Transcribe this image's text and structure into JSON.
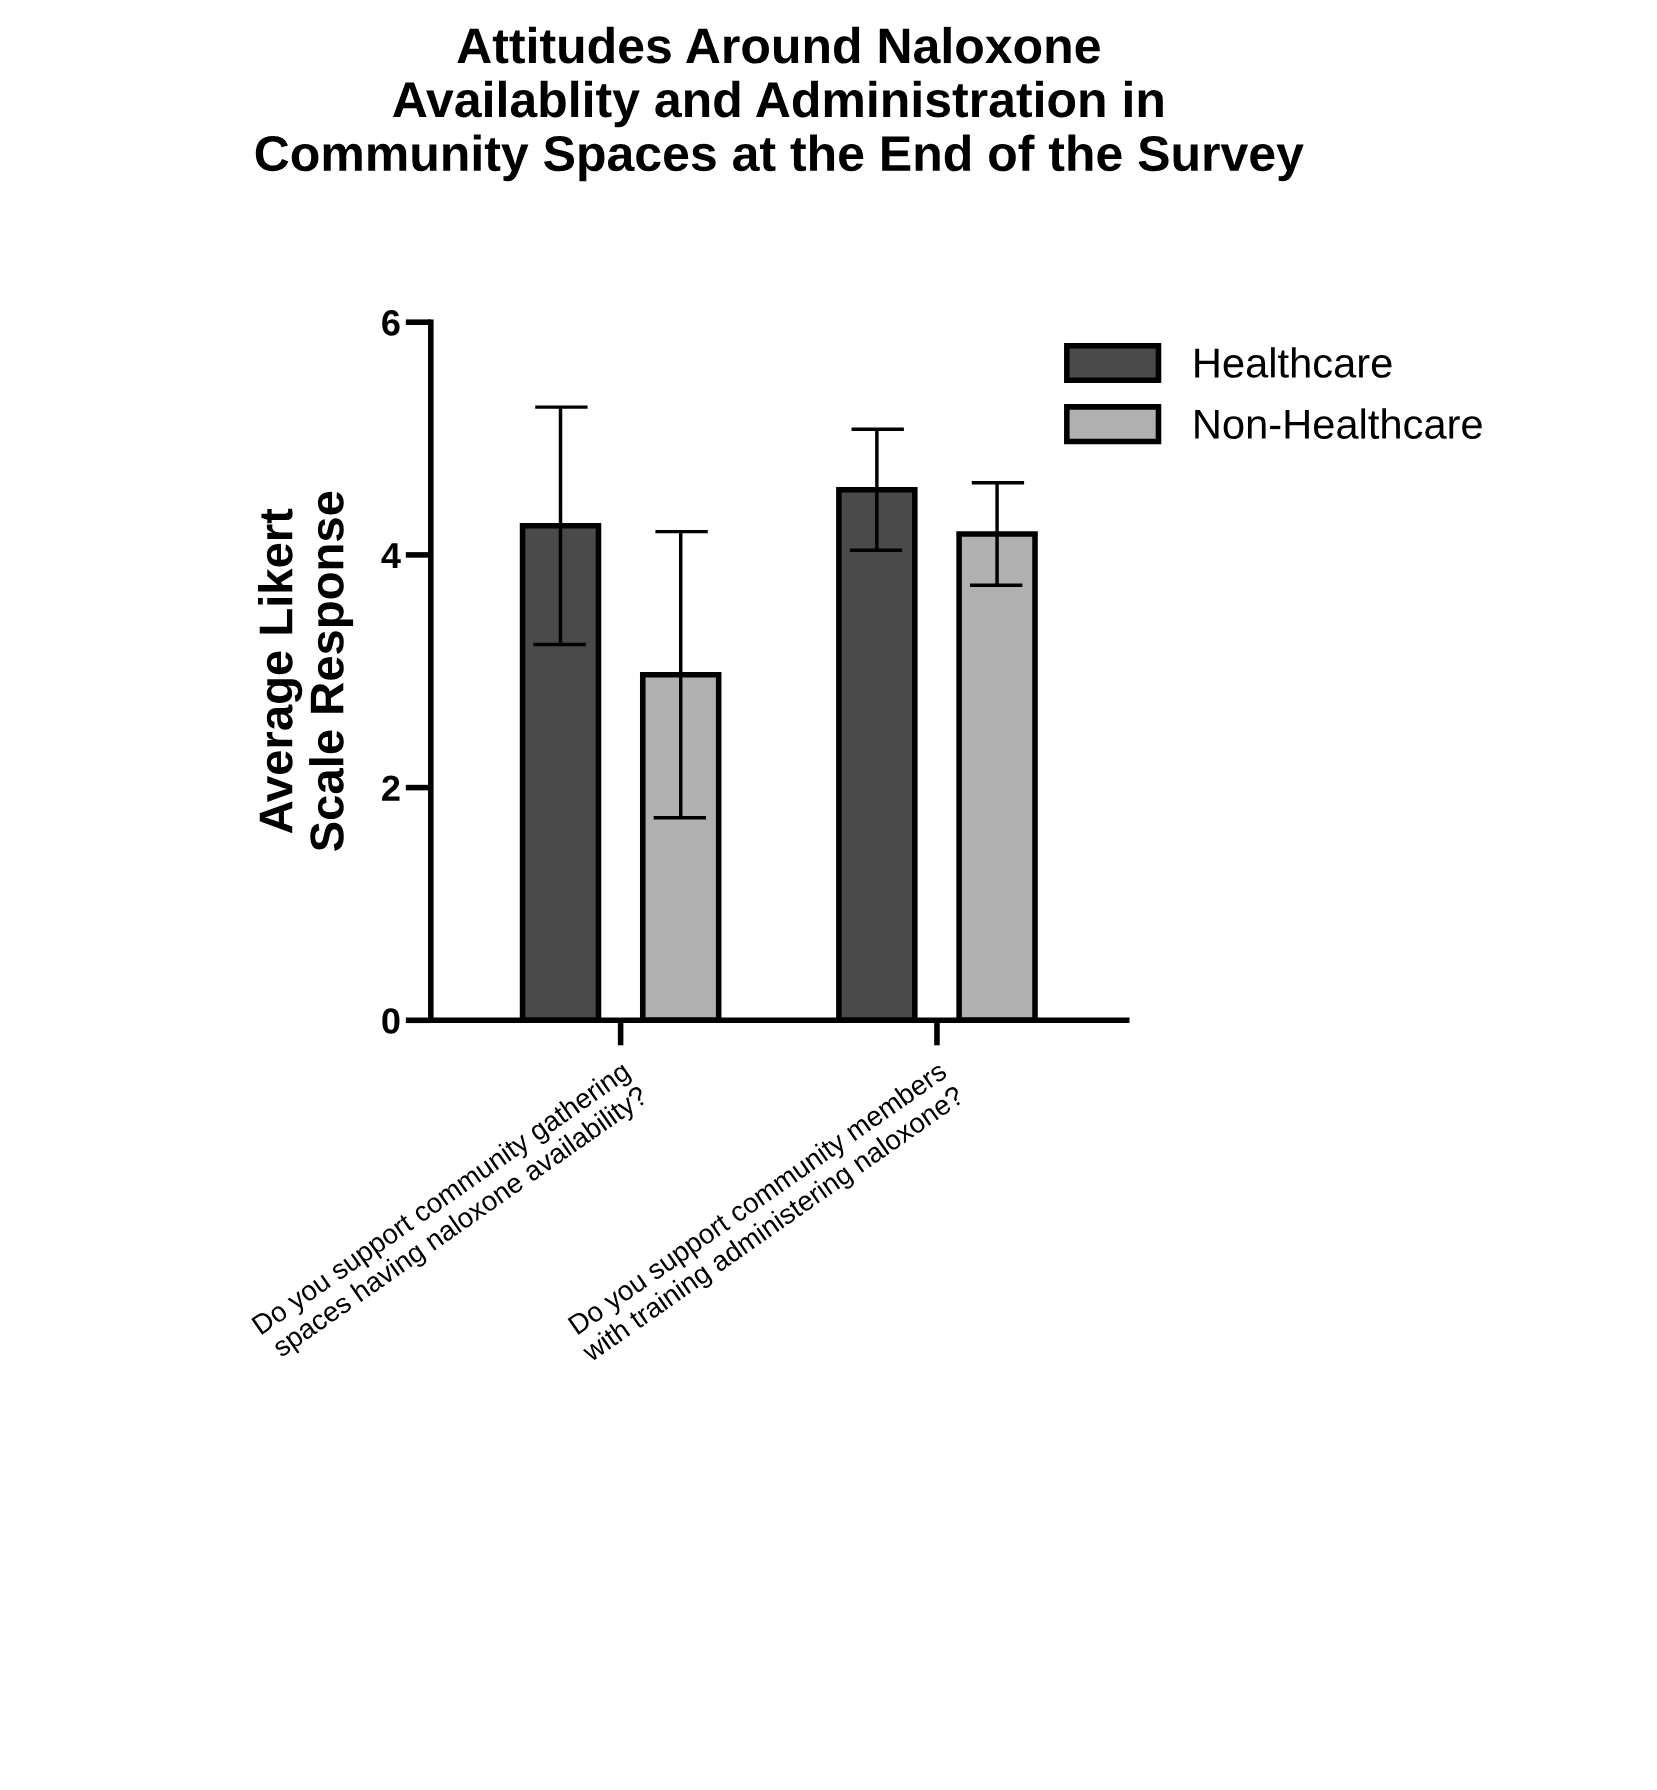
{
  "chart_data": {
    "type": "bar",
    "title": "Attitudes Around Naloxone\nAvailablity and Administration in\nCommunity Spaces at the End of the Survey",
    "ylabel": "Average Likert\nScale Response",
    "categories": [
      "Do you support community gathering\nspaces having naloxone availability?",
      "Do you support community members\nwith training administering naloxone?"
    ],
    "series": [
      {
        "name": "Healthcare",
        "color": "#4a4a4a",
        "values": [
          4.25,
          4.56
        ],
        "errors": [
          1.02,
          0.52
        ]
      },
      {
        "name": "Non-Healthcare",
        "color": "#b0b0b0",
        "values": [
          2.97,
          4.18
        ],
        "errors": [
          1.23,
          0.44
        ]
      }
    ],
    "ylim": [
      0,
      6
    ],
    "yticks": [
      0,
      2,
      4,
      6
    ],
    "grid": false,
    "legend": "top right"
  }
}
